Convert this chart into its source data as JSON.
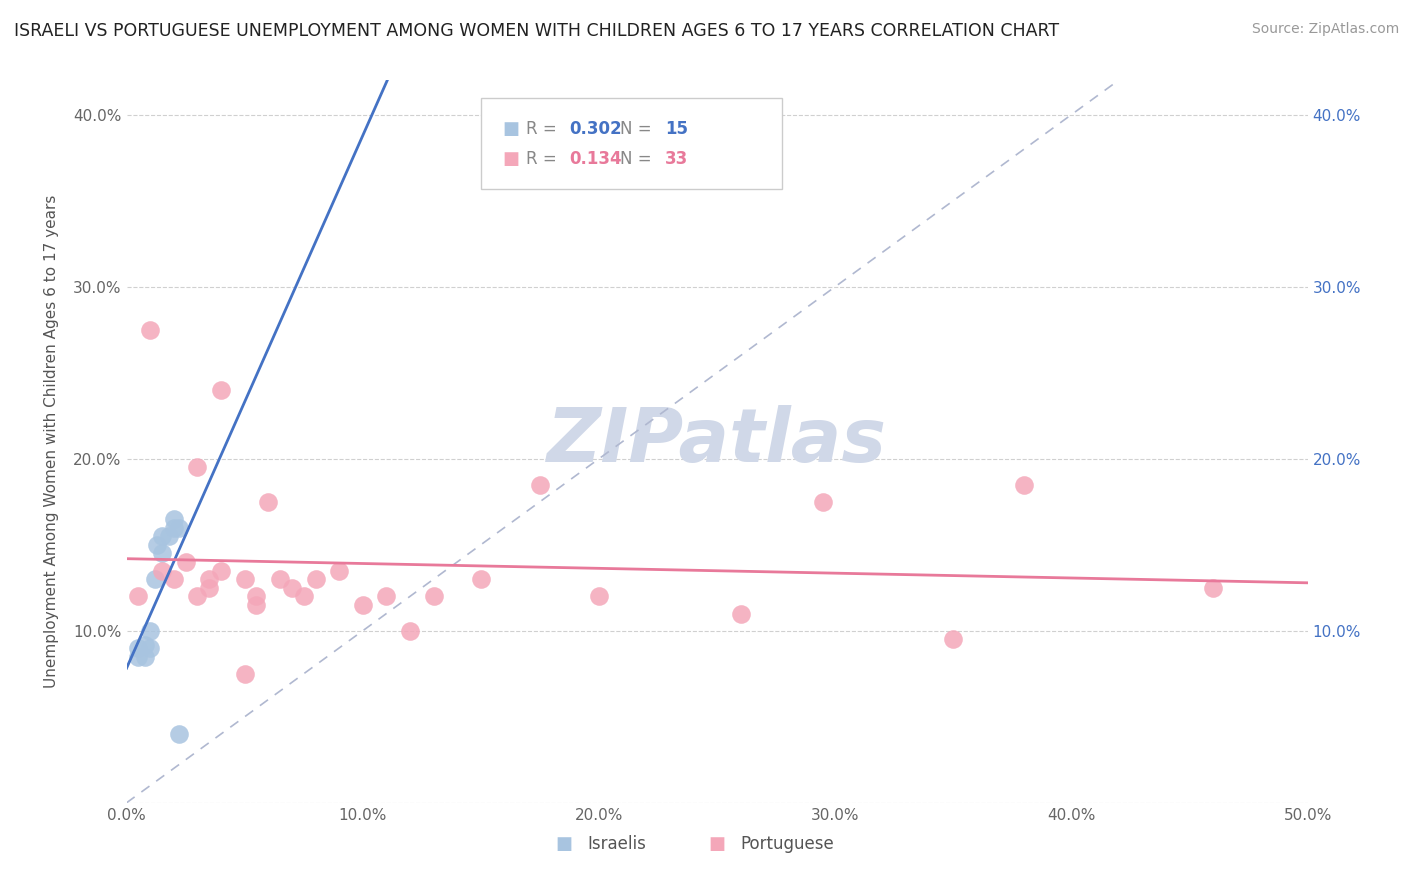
{
  "title": "ISRAELI VS PORTUGUESE UNEMPLOYMENT AMONG WOMEN WITH CHILDREN AGES 6 TO 17 YEARS CORRELATION CHART",
  "source": "Source: ZipAtlas.com",
  "ylabel": "Unemployment Among Women with Children Ages 6 to 17 years",
  "xlim": [
    0.0,
    0.5
  ],
  "ylim": [
    0.0,
    0.42
  ],
  "xticks": [
    0.0,
    0.1,
    0.2,
    0.3,
    0.4,
    0.5
  ],
  "yticks": [
    0.0,
    0.1,
    0.2,
    0.3,
    0.4
  ],
  "xticklabels": [
    "0.0%",
    "10.0%",
    "20.0%",
    "30.0%",
    "40.0%",
    "50.0%"
  ],
  "yticklabels": [
    "",
    "10.0%",
    "20.0%",
    "30.0%",
    "40.0%"
  ],
  "right_yticks": [
    0.1,
    0.2,
    0.3,
    0.4
  ],
  "right_yticklabels": [
    "10.0%",
    "20.0%",
    "30.0%",
    "40.0%"
  ],
  "israeli_R": 0.302,
  "israeli_N": 15,
  "portuguese_R": 0.134,
  "portuguese_N": 33,
  "israeli_color": "#a8c4e0",
  "portuguese_color": "#f4a7b9",
  "israeli_line_color": "#4472c4",
  "portuguese_line_color": "#e8799a",
  "diagonal_color": "#b0b8d0",
  "watermark": "ZIPatlas",
  "watermark_color": "#d0d8e8",
  "background_color": "#ffffff",
  "israeli_points": [
    [
      0.005,
      0.085
    ],
    [
      0.005,
      0.09
    ],
    [
      0.008,
      0.085
    ],
    [
      0.008,
      0.092
    ],
    [
      0.01,
      0.09
    ],
    [
      0.01,
      0.1
    ],
    [
      0.012,
      0.13
    ],
    [
      0.013,
      0.15
    ],
    [
      0.015,
      0.145
    ],
    [
      0.015,
      0.155
    ],
    [
      0.018,
      0.155
    ],
    [
      0.02,
      0.16
    ],
    [
      0.02,
      0.165
    ],
    [
      0.022,
      0.16
    ],
    [
      0.022,
      0.04
    ]
  ],
  "portuguese_points": [
    [
      0.005,
      0.12
    ],
    [
      0.01,
      0.275
    ],
    [
      0.015,
      0.135
    ],
    [
      0.02,
      0.13
    ],
    [
      0.025,
      0.14
    ],
    [
      0.03,
      0.195
    ],
    [
      0.03,
      0.12
    ],
    [
      0.035,
      0.13
    ],
    [
      0.035,
      0.125
    ],
    [
      0.04,
      0.24
    ],
    [
      0.04,
      0.135
    ],
    [
      0.05,
      0.13
    ],
    [
      0.05,
      0.075
    ],
    [
      0.055,
      0.115
    ],
    [
      0.055,
      0.12
    ],
    [
      0.06,
      0.175
    ],
    [
      0.065,
      0.13
    ],
    [
      0.07,
      0.125
    ],
    [
      0.075,
      0.12
    ],
    [
      0.08,
      0.13
    ],
    [
      0.09,
      0.135
    ],
    [
      0.1,
      0.115
    ],
    [
      0.11,
      0.12
    ],
    [
      0.12,
      0.1
    ],
    [
      0.13,
      0.12
    ],
    [
      0.15,
      0.13
    ],
    [
      0.175,
      0.185
    ],
    [
      0.2,
      0.12
    ],
    [
      0.26,
      0.11
    ],
    [
      0.295,
      0.175
    ],
    [
      0.35,
      0.095
    ],
    [
      0.38,
      0.185
    ],
    [
      0.46,
      0.125
    ]
  ],
  "israeli_line": [
    0.0,
    0.5
  ],
  "portuguese_line": [
    0.0,
    0.5
  ]
}
